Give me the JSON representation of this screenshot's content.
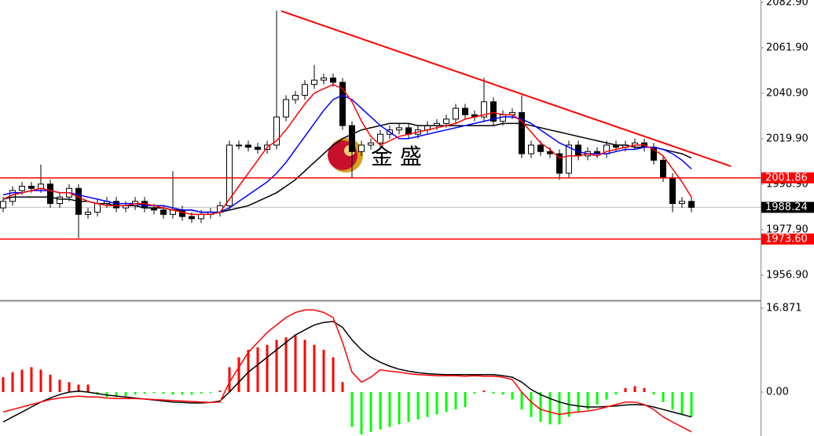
{
  "chart_data": [
    {
      "type": "candlestick",
      "watermark": "金 盛",
      "ylim": [
        1945.3,
        2084.0
      ],
      "yticks": [
        {
          "value": 2082.9,
          "label": "2082.90"
        },
        {
          "value": 2061.9,
          "label": "2061.90"
        },
        {
          "value": 2040.9,
          "label": "2040.90"
        },
        {
          "value": 2019.9,
          "label": "2019.90"
        },
        {
          "value": 1998.9,
          "label": "1998.90"
        },
        {
          "value": 1977.9,
          "label": "1977.90"
        },
        {
          "value": 1956.9,
          "label": "1956.90"
        }
      ],
      "up_color": "#ffffff",
      "down_color": "#000000",
      "open": [
        1988,
        1991,
        1996,
        1998,
        1997,
        1999,
        1990,
        1993,
        1997,
        1985,
        1986,
        1990,
        1991,
        1988,
        1989,
        1991,
        1988,
        1987,
        1985,
        1987,
        1984,
        1983,
        1985,
        1986,
        1989,
        2017,
        2017,
        2016,
        2015,
        2017,
        2030,
        2038,
        2040,
        2045,
        2047,
        2048,
        2046,
        2026,
        2014,
        2017,
        2018,
        2022,
        2024,
        2025,
        2022,
        2024,
        2026,
        2027,
        2029,
        2034,
        2031,
        2030,
        2037,
        2028,
        2031,
        2032,
        2013,
        2017,
        2014,
        2013,
        2004,
        2017,
        2012,
        2014,
        2013,
        2017,
        2016,
        2017,
        2018,
        2016,
        2010,
        2002,
        1990,
        1991
      ],
      "high": [
        1993,
        1998,
        2000,
        2000,
        2008,
        2001,
        1995,
        1999,
        1999,
        1988,
        1992,
        1993,
        1993,
        1991,
        1993,
        1993,
        1990,
        1989,
        2005,
        1989,
        1986,
        1987,
        1988,
        1991,
        2019,
        2019,
        2019,
        2018,
        2019,
        2079,
        2040,
        2042,
        2047,
        2054,
        2050,
        2050,
        2048,
        2028,
        2019,
        2020,
        2024,
        2026,
        2027,
        2027,
        2026,
        2028,
        2029,
        2031,
        2036,
        2036,
        2033,
        2048,
        2039,
        2033,
        2034,
        2040,
        2019,
        2019,
        2016,
        2015,
        2019,
        2019,
        2016,
        2016,
        2019,
        2019,
        2019,
        2020,
        2020,
        2018,
        2012,
        2004,
        1993,
        1993
      ],
      "low": [
        1986,
        1989,
        1994,
        1995,
        1995,
        1988,
        1988,
        1991,
        1974,
        1983,
        1984,
        1988,
        1986,
        1986,
        1987,
        1986,
        1985,
        1983,
        1983,
        1982,
        1981,
        1981,
        1983,
        1984,
        1987,
        2015,
        2014,
        2013,
        2013,
        2015,
        2028,
        2036,
        2038,
        2043,
        2045,
        2044,
        2024,
        2002,
        2012,
        2015,
        2016,
        2020,
        2022,
        2020,
        2020,
        2022,
        2024,
        2025,
        2027,
        2029,
        2028,
        2028,
        2026,
        2026,
        2029,
        2011,
        2011,
        2012,
        2011,
        2001,
        2002,
        2010,
        2010,
        2011,
        2011,
        2014,
        2014,
        2015,
        2014,
        2008,
        2000,
        1986,
        1988,
        1986
      ],
      "close": [
        1991,
        1996,
        1998,
        1997,
        1999,
        1990,
        1993,
        1997,
        1985,
        1986,
        1990,
        1991,
        1988,
        1989,
        1991,
        1988,
        1987,
        1985,
        1987,
        1984,
        1983,
        1985,
        1986,
        1989,
        2017,
        2017,
        2016,
        2015,
        2017,
        2030,
        2038,
        2040,
        2045,
        2047,
        2048,
        2046,
        2026,
        2014,
        2017,
        2018,
        2022,
        2024,
        2025,
        2022,
        2024,
        2026,
        2027,
        2029,
        2034,
        2031,
        2030,
        2037,
        2028,
        2031,
        2032,
        2013,
        2017,
        2014,
        2013,
        2004,
        2017,
        2012,
        2014,
        2013,
        2017,
        2016,
        2017,
        2018,
        2016,
        2010,
        2002,
        1990,
        1991,
        1988.24
      ],
      "moving_averages": [
        {
          "color": "#000000",
          "values": [
            1992,
            1993,
            1993,
            1993,
            1993,
            1993,
            1992,
            1992,
            1991,
            1991,
            1990,
            1990,
            1989,
            1989,
            1989,
            1988,
            1988,
            1988,
            1987,
            1987,
            1987,
            1986,
            1986,
            1986,
            1987,
            1988,
            1989,
            1991,
            1993,
            1995,
            1998,
            2001,
            2005,
            2009,
            2013,
            2017,
            2020,
            2022,
            2024,
            2025,
            2026,
            2027,
            2027,
            2027,
            2026,
            2026,
            2026,
            2026,
            2026,
            2026,
            2026,
            2026,
            2026,
            2027,
            2027,
            2027,
            2026,
            2025,
            2024,
            2023,
            2022,
            2021,
            2020,
            2019,
            2018,
            2017,
            2017,
            2016,
            2016,
            2016,
            2015,
            2014,
            2013,
            2011
          ]
        },
        {
          "color": "#0000ff",
          "values": [
            1994,
            1995,
            1995,
            1996,
            1996,
            1996,
            1995,
            1995,
            1994,
            1993,
            1992,
            1991,
            1990,
            1990,
            1990,
            1989,
            1989,
            1989,
            1988,
            1987,
            1987,
            1986,
            1986,
            1986,
            1988,
            1991,
            1994,
            1997,
            2000,
            2004,
            2009,
            2015,
            2021,
            2027,
            2033,
            2038,
            2040,
            2038,
            2034,
            2030,
            2026,
            2023,
            2020,
            2020,
            2021,
            2022,
            2023,
            2024,
            2025,
            2026,
            2027,
            2028,
            2029,
            2030,
            2030,
            2029,
            2027,
            2024,
            2021,
            2018,
            2016,
            2014,
            2013,
            2013,
            2013,
            2014,
            2015,
            2015,
            2016,
            2016,
            2015,
            2013,
            2010,
            2006
          ]
        },
        {
          "color": "#ff0000",
          "values": [
            1992,
            1994,
            1995,
            1996,
            1997,
            1996,
            1995,
            1995,
            1993,
            1991,
            1990,
            1989,
            1989,
            1989,
            1990,
            1990,
            1989,
            1988,
            1987,
            1986,
            1985,
            1985,
            1985,
            1986,
            1992,
            1998,
            2004,
            2010,
            2016,
            2019,
            2024,
            2030,
            2036,
            2041,
            2043,
            2045,
            2043,
            2037,
            2028,
            2021,
            2017,
            2019,
            2021,
            2022,
            2023,
            2024,
            2025,
            2026,
            2027,
            2029,
            2030,
            2031,
            2032,
            2031,
            2031,
            2028,
            2023,
            2018,
            2015,
            2011,
            2012,
            2012,
            2013,
            2012,
            2014,
            2015,
            2016,
            2017,
            2017,
            2015,
            2012,
            2006,
            2000,
            1993
          ]
        }
      ],
      "trendline": {
        "color": "#ff0000",
        "x": [
          29.5,
          77.2
        ],
        "y": [
          2078.9,
          2007.2
        ]
      },
      "levels": [
        {
          "value": 2001.86,
          "label": "2001.86",
          "color": "#ff0000"
        },
        {
          "value": 1973.6,
          "label": "1973.60",
          "color": "#ff0000"
        }
      ],
      "current_price": {
        "value": 1988.24,
        "label": "1988.24",
        "color": "#c0c0c0"
      }
    },
    {
      "type": "macd",
      "ylim": [
        -8.83,
        18.13
      ],
      "yticks": [
        16.871,
        {
          "value": 0,
          "label": "0.00"
        }
      ],
      "up_color": "#ff0000",
      "down_color": "#00ff00",
      "histogram": [
        3,
        4,
        4.5,
        5,
        4.5,
        3.5,
        2.5,
        2,
        1.5,
        1.5,
        -0.5,
        -1,
        -1,
        -0.8,
        -0.5,
        -0.3,
        -0.2,
        -0.3,
        -0.5,
        -0.5,
        -0.5,
        -0.3,
        -0.2,
        0.3,
        5,
        7,
        8.5,
        9,
        9.5,
        10.5,
        11,
        11.5,
        10.5,
        9.5,
        8.5,
        7,
        2,
        -7,
        -8.5,
        -8,
        -7.5,
        -7,
        -6.5,
        -6,
        -5.5,
        -5,
        -4.5,
        -4,
        -3.5,
        -3,
        -0.3,
        0.3,
        -0.3,
        -0.5,
        -1.5,
        -3.5,
        -5,
        -6,
        -6.5,
        -6.5,
        -5,
        -4,
        -3.5,
        -2.5,
        -1.5,
        -0.5,
        0.8,
        1.2,
        0.8,
        -0.5,
        -2,
        -3.5,
        -4.5,
        -5
      ],
      "lines": [
        {
          "color": "#000000",
          "values": [
            -6,
            -5,
            -4,
            -3,
            -2,
            -1.2,
            -0.5,
            0,
            0.2,
            0,
            -0.3,
            -0.6,
            -0.8,
            -1,
            -1.2,
            -1.4,
            -1.6,
            -1.8,
            -2,
            -2.1,
            -2.2,
            -2.2,
            -2.1,
            -1.8,
            0,
            2,
            4,
            5.5,
            7,
            8.5,
            10,
            11.5,
            12.5,
            13.5,
            14,
            14.2,
            13,
            10.5,
            8.5,
            7,
            6,
            5.2,
            4.6,
            4.2,
            3.9,
            3.7,
            3.6,
            3.5,
            3.5,
            3.5,
            3.5,
            3.5,
            3.5,
            3.3,
            3,
            2,
            0.5,
            -0.5,
            -1.3,
            -2,
            -2.5,
            -2.8,
            -3,
            -3,
            -2.9,
            -2.8,
            -2.6,
            -2.5,
            -2.6,
            -3,
            -3.5,
            -4,
            -4.5,
            -5
          ]
        },
        {
          "color": "#ff0000",
          "values": [
            -4,
            -3.5,
            -3,
            -2.5,
            -2,
            -1.5,
            -1.2,
            -1,
            -0.8,
            -1,
            -1,
            -1.2,
            -1.3,
            -1.3,
            -1.3,
            -1.4,
            -1.5,
            -1.6,
            -1.7,
            -1.8,
            -1.9,
            -2,
            -2.1,
            -2,
            2,
            5,
            8,
            10,
            12,
            13.5,
            15,
            16,
            16.5,
            16.5,
            16,
            15,
            10,
            4,
            2,
            3,
            4.5,
            4.2,
            4,
            3.7,
            3.5,
            3.4,
            3.3,
            3.3,
            3.3,
            3.2,
            3.3,
            3.2,
            3.2,
            3,
            2.5,
            0,
            -2,
            -3.5,
            -4,
            -4.5,
            -4.2,
            -4,
            -3.8,
            -3.5,
            -3,
            -2.5,
            -2,
            -2,
            -2.5,
            -3.5,
            -5,
            -6,
            -7,
            -8
          ]
        }
      ]
    }
  ]
}
